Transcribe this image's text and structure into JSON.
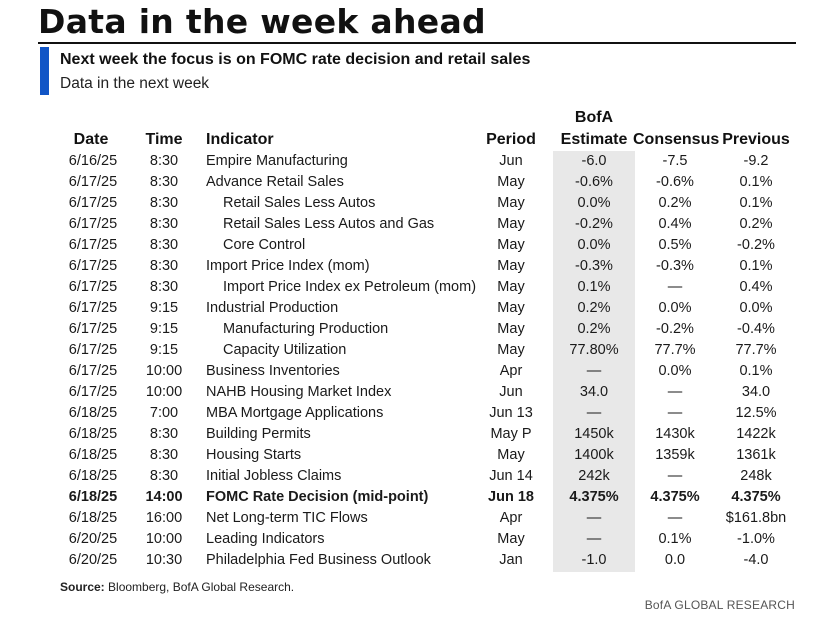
{
  "title": "Data in the week ahead",
  "subtitle": "Next week the focus is on FOMC rate decision and retail sales",
  "subsubtitle": "Data in the next week",
  "columns": {
    "date": "Date",
    "time": "Time",
    "indicator": "Indicator",
    "period": "Period",
    "estimate_line1": "BofA",
    "estimate_line2": "Estimate",
    "consensus": "Consensus",
    "previous": "Previous"
  },
  "rows": [
    {
      "date": "6/16/25",
      "time": "8:30",
      "indicator": "Empire Manufacturing",
      "sub": false,
      "period": "Jun",
      "estimate": "-6.0",
      "consensus": "-7.5",
      "previous": "-9.2"
    },
    {
      "date": "6/17/25",
      "time": "8:30",
      "indicator": "Advance Retail Sales",
      "sub": false,
      "period": "May",
      "estimate": "-0.6%",
      "consensus": "-0.6%",
      "previous": "0.1%"
    },
    {
      "date": "6/17/25",
      "time": "8:30",
      "indicator": "Retail Sales Less Autos",
      "sub": true,
      "period": "May",
      "estimate": "0.0%",
      "consensus": "0.2%",
      "previous": "0.1%"
    },
    {
      "date": "6/17/25",
      "time": "8:30",
      "indicator": "Retail Sales Less Autos and Gas",
      "sub": true,
      "period": "May",
      "estimate": "-0.2%",
      "consensus": "0.4%",
      "previous": "0.2%"
    },
    {
      "date": "6/17/25",
      "time": "8:30",
      "indicator": "Core Control",
      "sub": true,
      "period": "May",
      "estimate": "0.0%",
      "consensus": "0.5%",
      "previous": "-0.2%"
    },
    {
      "date": "6/17/25",
      "time": "8:30",
      "indicator": "Import Price Index (mom)",
      "sub": false,
      "period": "May",
      "estimate": "-0.3%",
      "consensus": "-0.3%",
      "previous": "0.1%"
    },
    {
      "date": "6/17/25",
      "time": "8:30",
      "indicator": "Import Price Index ex Petroleum (mom)",
      "sub": true,
      "period": "May",
      "estimate": "0.1%",
      "consensus": "—",
      "previous": "0.4%"
    },
    {
      "date": "6/17/25",
      "time": "9:15",
      "indicator": "Industrial Production",
      "sub": false,
      "period": "May",
      "estimate": "0.2%",
      "consensus": "0.0%",
      "previous": "0.0%"
    },
    {
      "date": "6/17/25",
      "time": "9:15",
      "indicator": "Manufacturing Production",
      "sub": true,
      "period": "May",
      "estimate": "0.2%",
      "consensus": "-0.2%",
      "previous": "-0.4%"
    },
    {
      "date": "6/17/25",
      "time": "9:15",
      "indicator": "Capacity Utilization",
      "sub": true,
      "period": "May",
      "estimate": "77.80%",
      "consensus": "77.7%",
      "previous": "77.7%"
    },
    {
      "date": "6/17/25",
      "time": "10:00",
      "indicator": "Business Inventories",
      "sub": false,
      "period": "Apr",
      "estimate": "—",
      "consensus": "0.0%",
      "previous": "0.1%"
    },
    {
      "date": "6/17/25",
      "time": "10:00",
      "indicator": "NAHB Housing Market Index",
      "sub": false,
      "period": "Jun",
      "estimate": "34.0",
      "consensus": "—",
      "previous": "34.0"
    },
    {
      "date": "6/18/25",
      "time": "7:00",
      "indicator": "MBA Mortgage Applications",
      "sub": false,
      "period": "Jun 13",
      "estimate": "—",
      "consensus": "—",
      "previous": "12.5%"
    },
    {
      "date": "6/18/25",
      "time": "8:30",
      "indicator": "Building Permits",
      "sub": false,
      "period": "May P",
      "estimate": "1450k",
      "consensus": "1430k",
      "previous": "1422k"
    },
    {
      "date": "6/18/25",
      "time": "8:30",
      "indicator": "Housing Starts",
      "sub": false,
      "period": "May",
      "estimate": "1400k",
      "consensus": "1359k",
      "previous": "1361k"
    },
    {
      "date": "6/18/25",
      "time": "8:30",
      "indicator": "Initial Jobless Claims",
      "sub": false,
      "period": "Jun 14",
      "estimate": "242k",
      "consensus": "—",
      "previous": "248k"
    },
    {
      "date": "6/18/25",
      "time": "14:00",
      "indicator": "FOMC Rate Decision (mid-point)",
      "sub": false,
      "bold": true,
      "period": "Jun 18",
      "estimate": "4.375%",
      "consensus": "4.375%",
      "previous": "4.375%"
    },
    {
      "date": "6/18/25",
      "time": "16:00",
      "indicator": "Net Long-term TIC Flows",
      "sub": false,
      "period": "Apr",
      "estimate": "—",
      "consensus": "—",
      "previous": "$161.8bn"
    },
    {
      "date": "6/20/25",
      "time": "10:00",
      "indicator": "Leading Indicators",
      "sub": false,
      "period": "May",
      "estimate": "—",
      "consensus": "0.1%",
      "previous": "-1.0%"
    },
    {
      "date": "6/20/25",
      "time": "10:30",
      "indicator": "Philadelphia Fed Business Outlook",
      "sub": false,
      "period": "Jan",
      "estimate": "-1.0",
      "consensus": "0.0",
      "previous": "-4.0"
    }
  ],
  "source_label": "Source:",
  "source_text": " Bloomberg, BofA Global Research.",
  "footer": "BofA GLOBAL RESEARCH",
  "colors": {
    "accent": "#1155c6",
    "estimate_shade": "#e8e8e8"
  }
}
